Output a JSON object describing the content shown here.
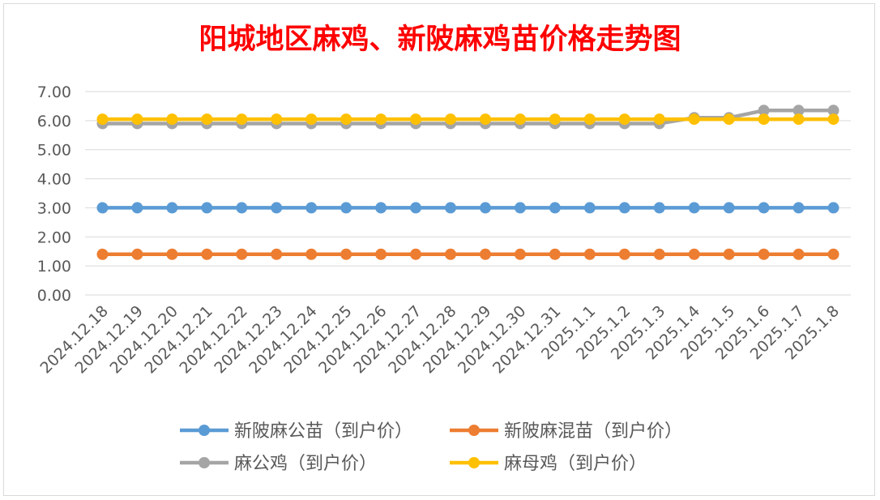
{
  "chart_data": {
    "type": "line",
    "title": "阳城地区麻鸡、新陂麻鸡苗价格走势图",
    "xlabel": "",
    "ylabel": "",
    "ylim": [
      0,
      7
    ],
    "yticks": [
      "0.00",
      "1.00",
      "2.00",
      "3.00",
      "4.00",
      "5.00",
      "6.00",
      "7.00"
    ],
    "grid": true,
    "legend_position": "bottom",
    "categories": [
      "2024.12.18",
      "2024.12.19",
      "2024.12.20",
      "2024.12.21",
      "2024.12.22",
      "2024.12.23",
      "2024.12.24",
      "2024.12.25",
      "2024.12.26",
      "2024.12.27",
      "2024.12.28",
      "2024.12.29",
      "2024.12.30",
      "2024.12.31",
      "2025.1.1",
      "2025.1.2",
      "2025.1.3",
      "2025.1.4",
      "2025.1.5",
      "2025.1.6",
      "2025.1.7",
      "2025.1.8"
    ],
    "series": [
      {
        "name": "新陂麻公苗（到户价）",
        "color": "#5b9bd5",
        "values": [
          3.0,
          3.0,
          3.0,
          3.0,
          3.0,
          3.0,
          3.0,
          3.0,
          3.0,
          3.0,
          3.0,
          3.0,
          3.0,
          3.0,
          3.0,
          3.0,
          3.0,
          3.0,
          3.0,
          3.0,
          3.0,
          3.0
        ]
      },
      {
        "name": "新陂麻混苗（到户价）",
        "color": "#ed7d31",
        "values": [
          1.4,
          1.4,
          1.4,
          1.4,
          1.4,
          1.4,
          1.4,
          1.4,
          1.4,
          1.4,
          1.4,
          1.4,
          1.4,
          1.4,
          1.4,
          1.4,
          1.4,
          1.4,
          1.4,
          1.4,
          1.4,
          1.4
        ]
      },
      {
        "name": "麻公鸡（到户价）",
        "color": "#a5a5a5",
        "values": [
          5.9,
          5.9,
          5.9,
          5.9,
          5.9,
          5.9,
          5.9,
          5.9,
          5.9,
          5.9,
          5.9,
          5.9,
          5.9,
          5.9,
          5.9,
          5.9,
          5.9,
          6.1,
          6.1,
          6.35,
          6.35,
          6.35
        ]
      },
      {
        "name": "麻母鸡（到户价）",
        "color": "#ffc000",
        "values": [
          6.05,
          6.05,
          6.05,
          6.05,
          6.05,
          6.05,
          6.05,
          6.05,
          6.05,
          6.05,
          6.05,
          6.05,
          6.05,
          6.05,
          6.05,
          6.05,
          6.05,
          6.05,
          6.05,
          6.05,
          6.05,
          6.05
        ]
      }
    ],
    "title_color": "#ff0000",
    "axis_text_color": "#595959",
    "grid_color": "#d9d9d9"
  }
}
